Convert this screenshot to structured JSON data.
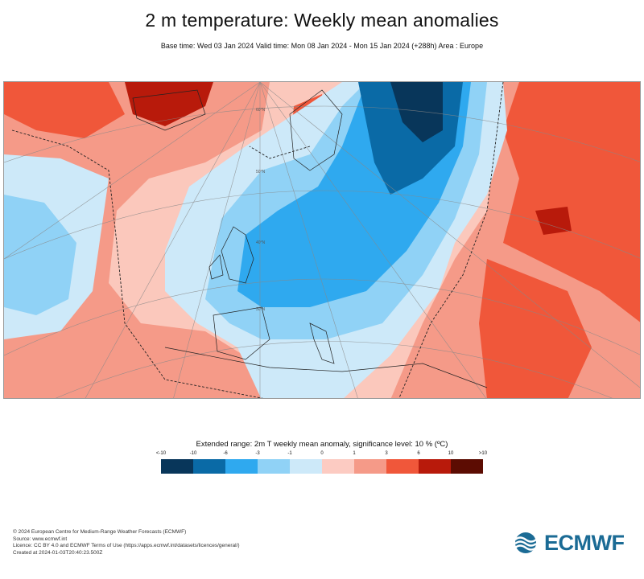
{
  "header": {
    "title": "2 m temperature: Weekly mean anomalies",
    "subtitle": "Base time: Wed 03 Jan 2024 Valid time: Mon 08 Jan 2024 - Mon 15 Jan 2024 (+288h) Area : Europe"
  },
  "map": {
    "graticule_labels": [
      "60°N",
      "50°N",
      "40°N",
      "30°N"
    ]
  },
  "legend": {
    "title": "Extended range: 2m T weekly mean anomaly, significance level: 10 % (ºC)",
    "ticks": [
      "<-10",
      "-10",
      "-6",
      "-3",
      "-1",
      "0",
      "1",
      "3",
      "6",
      "10",
      ">10"
    ],
    "colors": [
      "#08365a",
      "#0a6aa6",
      "#2fa9ef",
      "#90d2f6",
      "#cde9f9",
      "#fccbc2",
      "#f59a88",
      "#f0573a",
      "#b81a0b",
      "#5c0c02"
    ]
  },
  "credits": {
    "line1": "© 2024 European Centre for Medium-Range Weather Forecasts (ECMWF)",
    "line2": "Source: www.ecmwf.int",
    "line3": "Licence: CC BY 4.0 and ECMWF Terms of Use (https://apps.ecmwf.int/datasets/licences/general/)",
    "line4": "Created at 2024-01-03T20:40:23.500Z"
  },
  "logo": {
    "text": "ECMWF"
  }
}
